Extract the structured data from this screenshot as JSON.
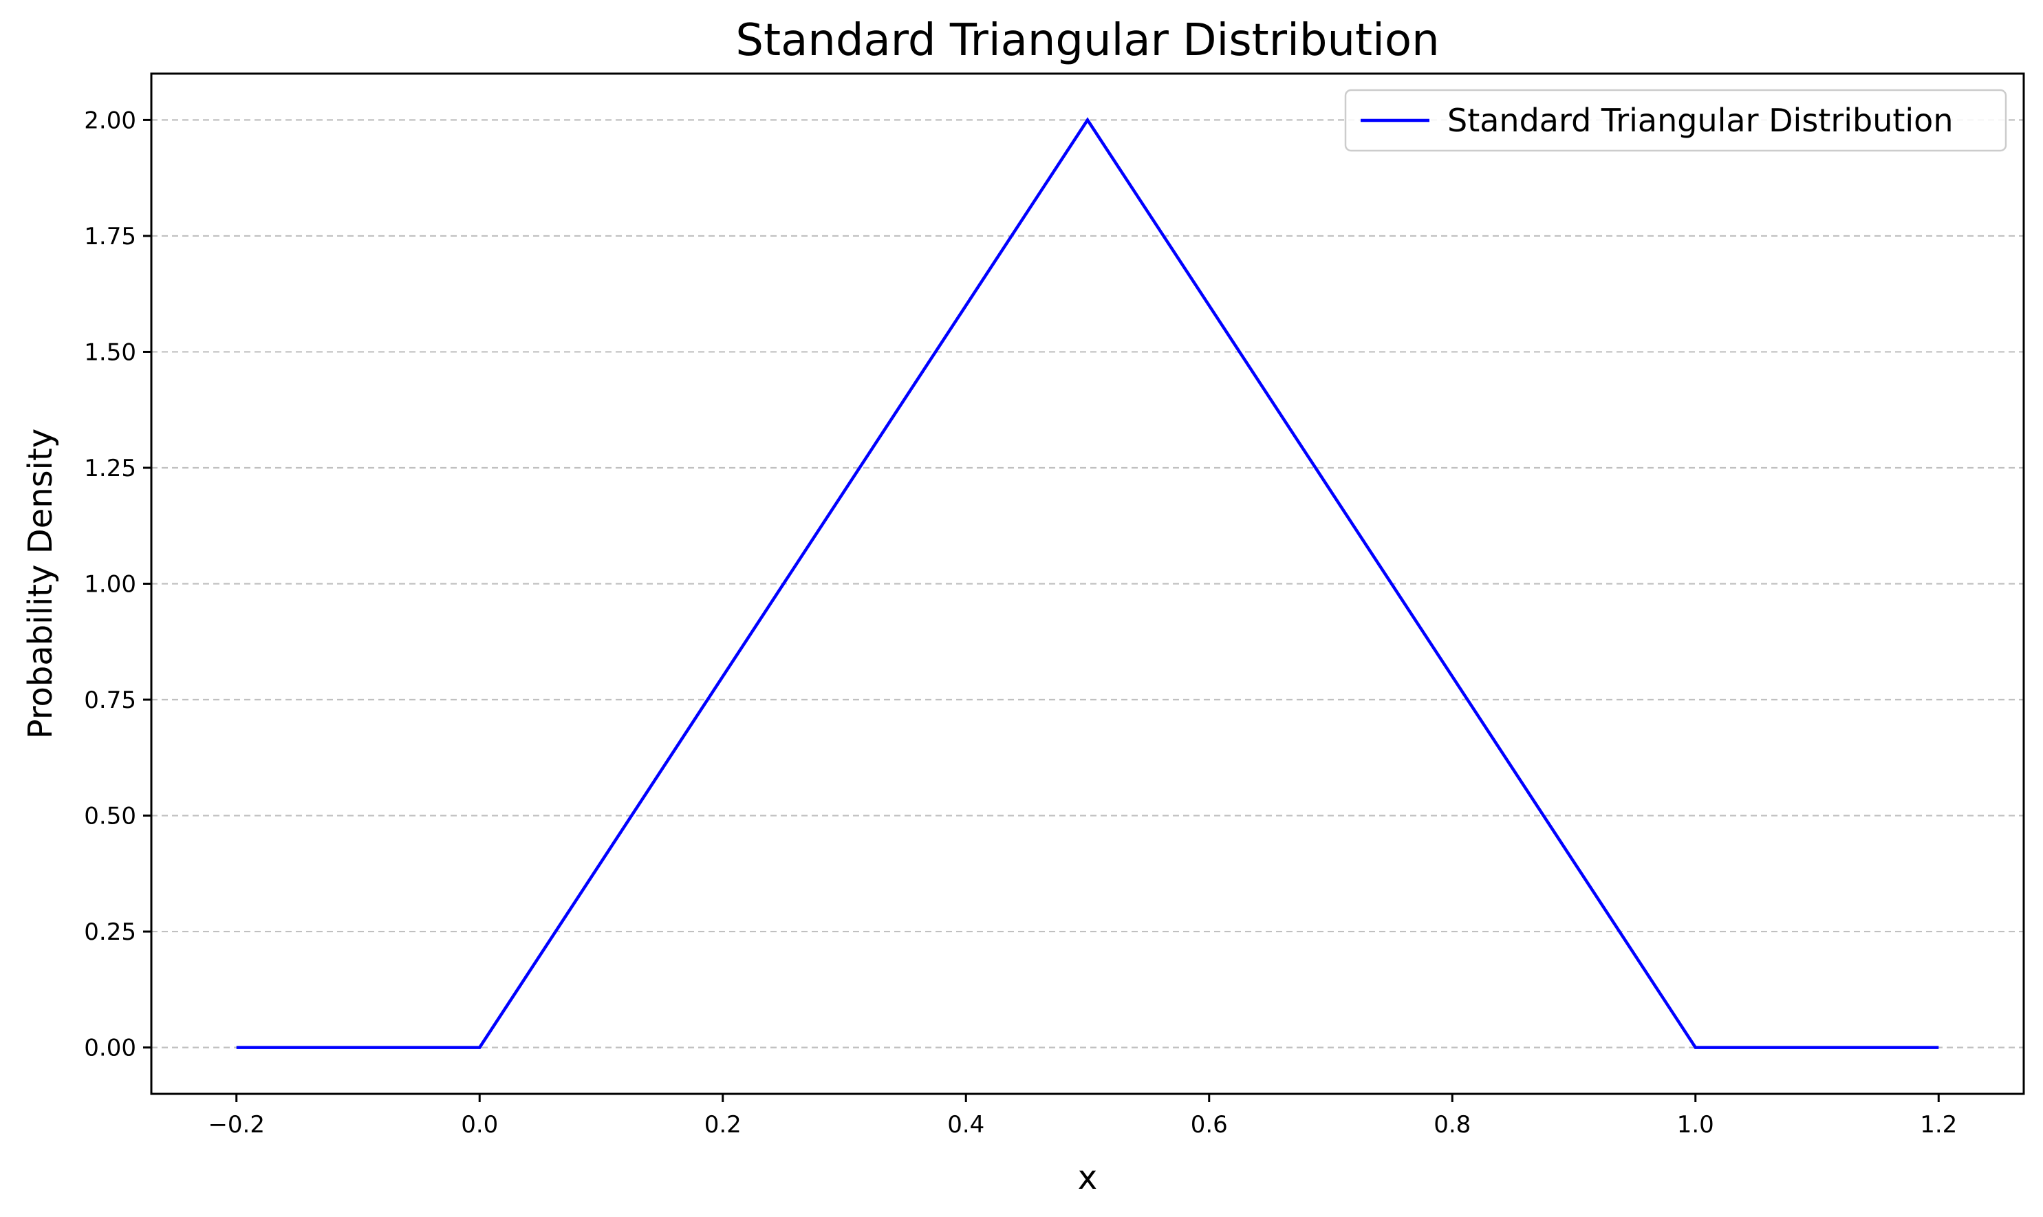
{
  "chart_data": {
    "type": "line",
    "title": "Standard Triangular Distribution",
    "xlabel": "x",
    "ylabel": "Probability Density",
    "xlim": [
      -0.27,
      1.27
    ],
    "ylim": [
      -0.1,
      2.1
    ],
    "x_ticks": [
      -0.2,
      0.0,
      0.2,
      0.4,
      0.6,
      0.8,
      1.0,
      1.2
    ],
    "x_tick_labels": [
      "−0.2",
      "0.0",
      "0.2",
      "0.4",
      "0.6",
      "0.8",
      "1.0",
      "1.2"
    ],
    "y_ticks": [
      0.0,
      0.25,
      0.5,
      0.75,
      1.0,
      1.25,
      1.5,
      1.75,
      2.0
    ],
    "y_tick_labels": [
      "0.00",
      "0.25",
      "0.50",
      "0.75",
      "1.00",
      "1.25",
      "1.50",
      "1.75",
      "2.00"
    ],
    "grid": "horizontal dashed",
    "legend_position": "top-right",
    "series": [
      {
        "name": "Standard Triangular Distribution",
        "color": "#0000ff",
        "x": [
          -0.2,
          0.0,
          0.5,
          1.0,
          1.2
        ],
        "y": [
          0.0,
          0.0,
          2.0,
          0.0,
          0.0
        ]
      }
    ]
  }
}
